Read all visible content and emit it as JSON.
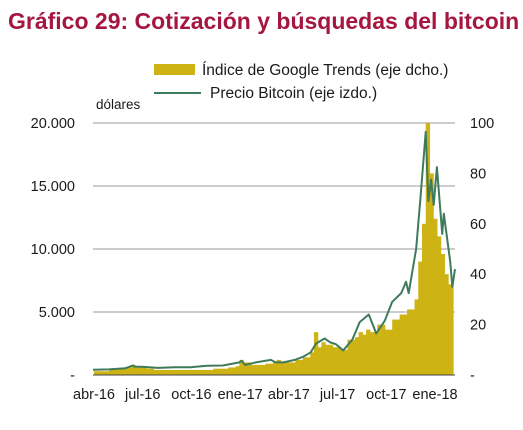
{
  "title": "Gráfico 29: Cotización y búsquedas del bitcoin",
  "colors": {
    "title": "#a5173f",
    "bars": "#cdb313",
    "line": "#3f7b5b",
    "grid": "#9a9a9a"
  },
  "chart_data": {
    "type": "bar",
    "legend": {
      "placement": "top-right",
      "items": [
        {
          "label": "Índice de Google Trends (eje dcho.)",
          "kind": "bar"
        },
        {
          "label": "Precio Bitcoin (eje izdo.)",
          "kind": "line"
        }
      ]
    },
    "ylabel": "dólares",
    "y_left": {
      "lim": [
        0,
        20000
      ],
      "ticks": [
        0,
        5000,
        10000,
        15000,
        20000
      ],
      "tick_labels": [
        "-",
        "5.000",
        "10.000",
        "15.000",
        "20.000"
      ]
    },
    "y_right": {
      "lim": [
        0,
        100
      ],
      "ticks": [
        0,
        20,
        40,
        60,
        80,
        100
      ],
      "tick_labels": [
        "-",
        "20",
        "40",
        "60",
        "80",
        "100"
      ]
    },
    "x_ticks": [
      "abr-16",
      "jul-16",
      "oct-16",
      "ene-17",
      "abr-17",
      "jul-17",
      "oct-17",
      "ene-18"
    ],
    "x_start": "2016-04-01",
    "x_end": "2018-02-10",
    "grid": true,
    "series": [
      {
        "name": "Índice de Google Trends (eje dcho.)",
        "type": "bar",
        "axis": "right",
        "dates": [
          "2016-04-03",
          "2016-04-17",
          "2016-05-01",
          "2016-05-15",
          "2016-05-29",
          "2016-06-12",
          "2016-06-19",
          "2016-06-26",
          "2016-07-10",
          "2016-07-24",
          "2016-08-07",
          "2016-08-21",
          "2016-09-04",
          "2016-09-18",
          "2016-10-02",
          "2016-10-16",
          "2016-10-30",
          "2016-11-13",
          "2016-11-27",
          "2016-12-11",
          "2016-12-25",
          "2017-01-01",
          "2017-01-08",
          "2017-01-22",
          "2017-02-05",
          "2017-02-19",
          "2017-03-05",
          "2017-03-12",
          "2017-03-19",
          "2017-04-02",
          "2017-04-16",
          "2017-04-30",
          "2017-05-14",
          "2017-05-21",
          "2017-05-28",
          "2017-06-04",
          "2017-06-11",
          "2017-06-25",
          "2017-07-09",
          "2017-07-23",
          "2017-08-06",
          "2017-08-13",
          "2017-08-20",
          "2017-08-27",
          "2017-09-03",
          "2017-09-17",
          "2017-10-01",
          "2017-10-15",
          "2017-10-29",
          "2017-11-12",
          "2017-11-26",
          "2017-12-03",
          "2017-12-10",
          "2017-12-17",
          "2017-12-24",
          "2017-12-31",
          "2018-01-07",
          "2018-01-14",
          "2018-01-21",
          "2018-01-28",
          "2018-02-04"
        ],
        "values": [
          1.5,
          1.5,
          2,
          2.5,
          3,
          4,
          3.5,
          3,
          2.5,
          2,
          2,
          2,
          2,
          2,
          2,
          2,
          2,
          2.5,
          2.5,
          3,
          3.5,
          6,
          5,
          4,
          4,
          4.5,
          5,
          6,
          5,
          5,
          6,
          7,
          9,
          17,
          11,
          13,
          12,
          11,
          10,
          14,
          15,
          17,
          16,
          18,
          17,
          20,
          18,
          22,
          24,
          26,
          30,
          45,
          60,
          100,
          80,
          62,
          55,
          48,
          40,
          36,
          38
        ]
      },
      {
        "name": "Precio Bitcoin (eje izdo.)",
        "type": "line",
        "axis": "left",
        "dates": [
          "2016-04-01",
          "2016-05-01",
          "2016-06-01",
          "2016-06-15",
          "2016-06-18",
          "2016-07-01",
          "2016-08-01",
          "2016-09-01",
          "2016-10-01",
          "2016-11-01",
          "2016-12-01",
          "2017-01-01",
          "2017-01-05",
          "2017-01-12",
          "2017-02-01",
          "2017-03-01",
          "2017-03-10",
          "2017-03-25",
          "2017-04-15",
          "2017-05-01",
          "2017-05-15",
          "2017-05-25",
          "2017-06-10",
          "2017-06-20",
          "2017-07-01",
          "2017-07-15",
          "2017-08-01",
          "2017-08-15",
          "2017-09-01",
          "2017-09-15",
          "2017-10-01",
          "2017-10-15",
          "2017-11-01",
          "2017-11-10",
          "2017-11-15",
          "2017-11-29",
          "2017-12-07",
          "2017-12-17",
          "2017-12-22",
          "2017-12-27",
          "2018-01-01",
          "2018-01-07",
          "2018-01-17",
          "2018-01-20",
          "2018-02-01",
          "2018-02-05",
          "2018-02-10"
        ],
        "values": [
          420,
          450,
          540,
          760,
          660,
          650,
          570,
          610,
          615,
          730,
          755,
          1000,
          1130,
          800,
          1000,
          1200,
          1000,
          1000,
          1200,
          1450,
          1800,
          2500,
          2900,
          2600,
          2450,
          1950,
          2800,
          4200,
          4800,
          3300,
          4300,
          5800,
          6500,
          7400,
          6500,
          10000,
          14000,
          19300,
          13800,
          15500,
          13500,
          16500,
          11200,
          12800,
          9000,
          7000,
          8400
        ]
      }
    ]
  }
}
